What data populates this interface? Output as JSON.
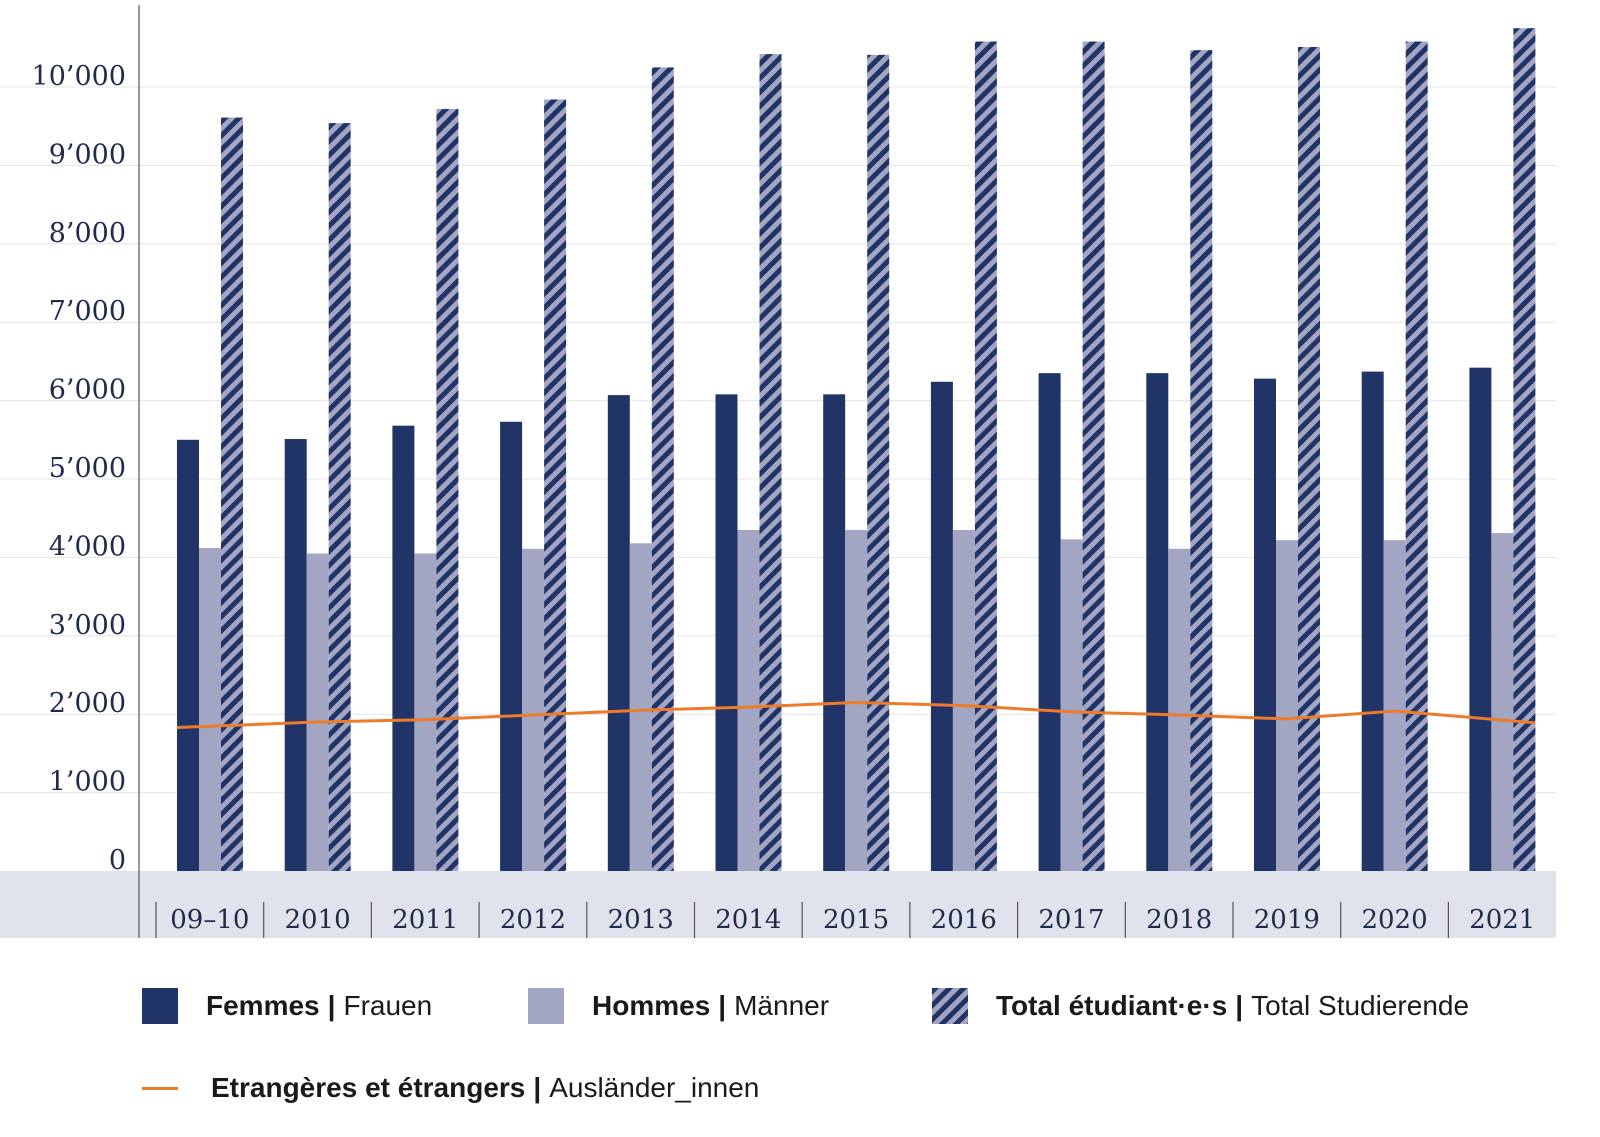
{
  "colors": {
    "women": "#213468",
    "men": "#a2a6c2",
    "total_dark": "#213468",
    "total_light": "#a2a6c2",
    "foreign": "#ee7b2a",
    "axis_band": "#e1e3ec",
    "grid": "#e4e4e4",
    "text": "#1f2b4a"
  },
  "legend": [
    {
      "key": "women",
      "bold": "Femmes",
      "normal": "Frauen"
    },
    {
      "key": "men",
      "bold": "Hommes",
      "normal": "Männer"
    },
    {
      "key": "total",
      "bold": "Total étudiant·e·s",
      "normal": "Total Studierende"
    },
    {
      "key": "foreign",
      "bold": "Etrangères et étrangers",
      "normal": "Ausländer_innen"
    }
  ],
  "chart_data": {
    "type": "bar",
    "categories": [
      "09–10",
      "2010",
      "2011",
      "2012",
      "2013",
      "2014",
      "2015",
      "2016",
      "2017",
      "2018",
      "2019",
      "2020",
      "2021"
    ],
    "y_tick_labels": [
      "0",
      "1’000",
      "2’000",
      "3’000",
      "4’000",
      "5’000",
      "6’000",
      "7’000",
      "8’000",
      "9’000",
      "10’000"
    ],
    "ylim": [
      0,
      11000
    ],
    "grid": true,
    "legend_position": "bottom",
    "series": [
      {
        "key": "women",
        "name": "Femmes | Frauen",
        "type": "bar",
        "values": [
          5500,
          5510,
          5680,
          5730,
          6070,
          6080,
          6080,
          6240,
          6350,
          6350,
          6280,
          6370,
          6420
        ]
      },
      {
        "key": "men",
        "name": "Hommes | Männer",
        "type": "bar",
        "values": [
          4120,
          4050,
          4050,
          4110,
          4180,
          4350,
          4350,
          4350,
          4230,
          4110,
          4220,
          4220,
          4310
        ]
      },
      {
        "key": "total",
        "name": "Total étudiant·e·s | Total Studierende",
        "type": "bar-hatched",
        "values": [
          9610,
          9540,
          9720,
          9840,
          10250,
          10420,
          10410,
          10580,
          10580,
          10470,
          10510,
          10580,
          10750
        ]
      },
      {
        "key": "foreign",
        "name": "Etrangères et étrangers | Ausländer_innen",
        "type": "line",
        "values": [
          1830,
          1900,
          1930,
          1990,
          2050,
          2090,
          2150,
          2110,
          2030,
          1990,
          1940,
          2040,
          1890
        ]
      }
    ]
  }
}
